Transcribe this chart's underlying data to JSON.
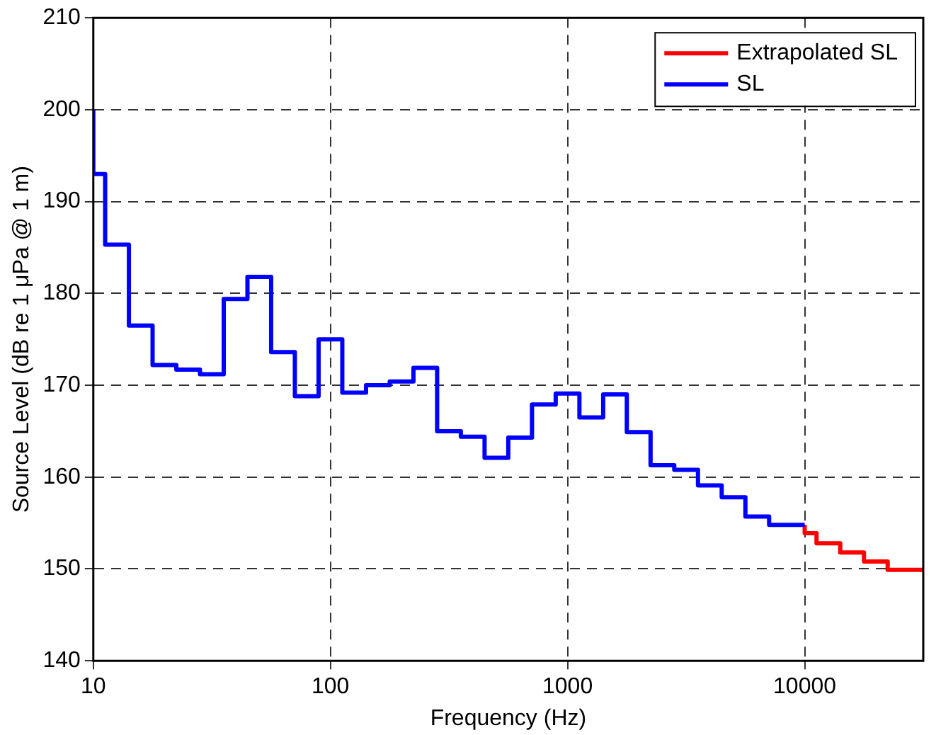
{
  "chart_data": {
    "type": "step",
    "xlabel": "Frequency (Hz)",
    "ylabel": "Source Level (dB re 1 μPa @ 1 m)",
    "log": "x",
    "xlim": [
      10,
      31623
    ],
    "xticks": [
      10,
      100,
      1000,
      10000
    ],
    "ylim": [
      140,
      210
    ],
    "yticks": [
      140,
      150,
      160,
      170,
      180,
      190,
      200,
      210
    ],
    "grid": true,
    "legend": "top right",
    "series": [
      {
        "name": "Extrapolated SL",
        "color": "#ff0000",
        "x": [
          10000,
          11220,
          14125,
          17783,
          22387,
          28184,
          31623
        ],
        "values": [
          154.8,
          153.9,
          152.8,
          151.8,
          150.8,
          149.9,
          149.9
        ]
      },
      {
        "name": "SL",
        "color": "#0000ff",
        "x": [
          10,
          11.22,
          14.13,
          17.78,
          22.39,
          28.18,
          35.48,
          44.67,
          56.23,
          70.79,
          89.13,
          112.2,
          141.3,
          177.8,
          223.9,
          281.8,
          354.8,
          446.7,
          562.3,
          707.9,
          891.3,
          1122,
          1413,
          1778,
          2239,
          2818,
          3548,
          4467,
          5623,
          7079,
          8913,
          10000
        ],
        "values": [
          200,
          193,
          185.3,
          176.5,
          172.2,
          171.7,
          171.2,
          179.4,
          181.8,
          173.6,
          168.8,
          175,
          169.2,
          170,
          170.4,
          171.9,
          165,
          164.4,
          162.1,
          164.3,
          167.9,
          169.1,
          166.5,
          169,
          164.9,
          161.3,
          160.8,
          159.1,
          157.8,
          155.7,
          154.8,
          154.8
        ]
      }
    ]
  }
}
